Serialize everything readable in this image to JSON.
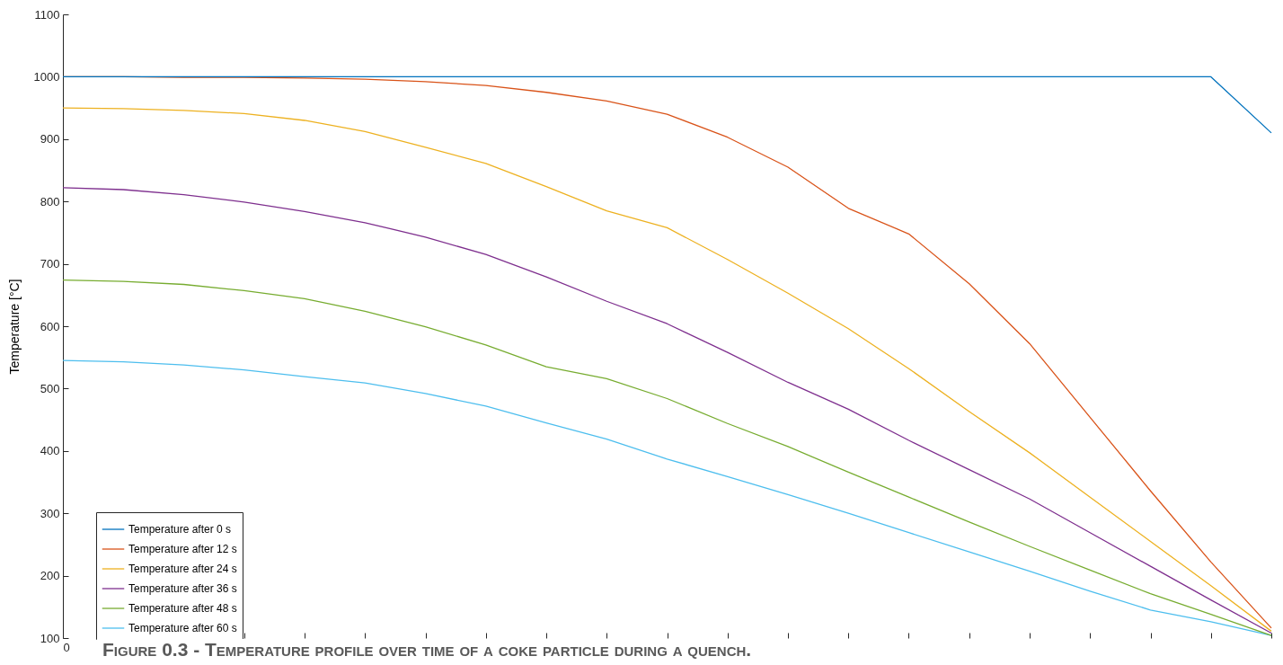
{
  "chart_data": {
    "type": "line",
    "ylabel": "Temperature [°C]",
    "annotations": [
      "Figure 0.3 - Temperature profile over time of a coke particle during a quench."
    ],
    "categories": [
      "0",
      null,
      null,
      null,
      null,
      null,
      null,
      null,
      null,
      null,
      null,
      null,
      null,
      null,
      null,
      null,
      null,
      null,
      null,
      null,
      null
    ],
    "ylim": [
      100,
      1100
    ],
    "yticks": [
      100,
      200,
      300,
      400,
      500,
      600,
      700,
      800,
      900,
      1000,
      1100
    ],
    "legend": "bottom left",
    "grid": false,
    "series": [
      {
        "name": "Temperature after 0 s",
        "color": "#0072bd",
        "values": [
          1000,
          1000,
          1000,
          1000,
          1000,
          1000,
          1000,
          1000,
          1000,
          1000,
          1000,
          1000,
          1000,
          1000,
          1000,
          1000,
          1000,
          1000,
          1000,
          1000,
          910
        ]
      },
      {
        "name": "Temperature after 12 s",
        "color": "#d95319",
        "values": [
          1000,
          1000,
          999,
          999,
          998,
          996,
          992,
          986,
          975,
          961,
          940,
          903,
          855,
          789,
          748,
          668,
          572,
          454,
          336,
          222,
          116
        ]
      },
      {
        "name": "Temperature after 24 s",
        "color": "#edb120",
        "values": [
          950,
          949,
          946,
          941,
          930,
          912,
          887,
          861,
          824,
          785,
          758,
          707,
          653,
          596,
          532,
          463,
          397,
          326,
          255,
          184,
          111
        ]
      },
      {
        "name": "Temperature after 36 s",
        "color": "#7e2f8e",
        "values": [
          822,
          819,
          811,
          799,
          784,
          766,
          743,
          715,
          679,
          640,
          604,
          558,
          510,
          467,
          417,
          370,
          323,
          269,
          215,
          161,
          108
        ]
      },
      {
        "name": "Temperature after 48 s",
        "color": "#77ac30",
        "values": [
          674,
          672,
          667,
          657,
          644,
          624,
          599,
          570,
          535,
          516,
          484,
          444,
          407,
          366,
          326,
          286,
          247,
          209,
          171,
          138,
          104
        ]
      },
      {
        "name": "Temperature after 60 s",
        "color": "#4dbeee",
        "values": [
          545,
          543,
          538,
          530,
          519,
          509,
          492,
          472,
          445,
          419,
          387,
          359,
          330,
          300,
          269,
          238,
          207,
          175,
          145,
          126,
          104
        ]
      }
    ]
  }
}
